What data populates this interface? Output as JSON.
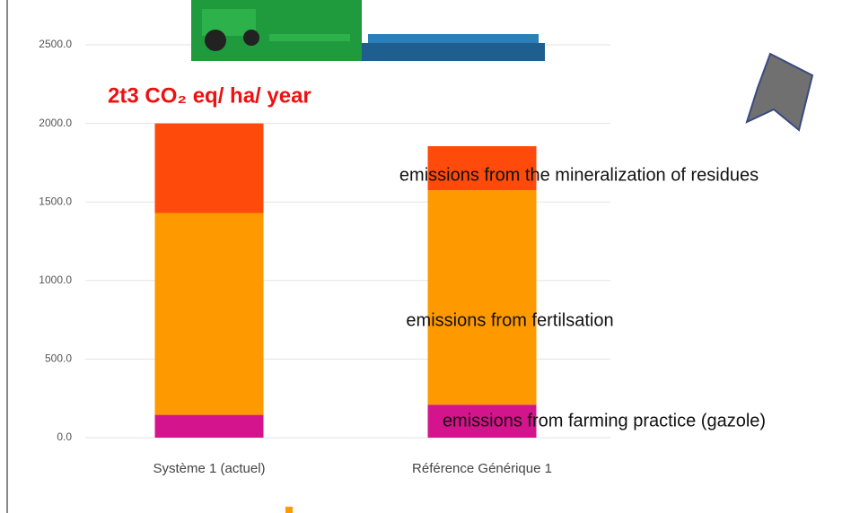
{
  "chart_data": {
    "type": "stacked-bar",
    "title": "2t3 CO₂ eq/ ha/ year",
    "categories": [
      "Système 1 (actuel)",
      "Référence Générique 1"
    ],
    "series": [
      {
        "name": "emissions from farming practice (gazole)",
        "color": "#d4148c",
        "values": [
          145,
          210
        ]
      },
      {
        "name": "emissions from fertilsation",
        "color": "#ff9900",
        "values": [
          1285,
          1365
        ]
      },
      {
        "name": "emissions from the mineralization of residues",
        "color": "#fe4a0a",
        "values": [
          570,
          280
        ]
      }
    ],
    "ylim": [
      0,
      2500
    ],
    "yticks": [
      {
        "value": 0,
        "label": "0.0"
      },
      {
        "value": 500,
        "label": "500.0"
      },
      {
        "value": 1000,
        "label": "1000.0"
      },
      {
        "value": 1500,
        "label": "1500.0"
      },
      {
        "value": 2000,
        "label": "2000.0"
      },
      {
        "value": 2500,
        "label": "2500.0"
      }
    ],
    "grid": true
  }
}
